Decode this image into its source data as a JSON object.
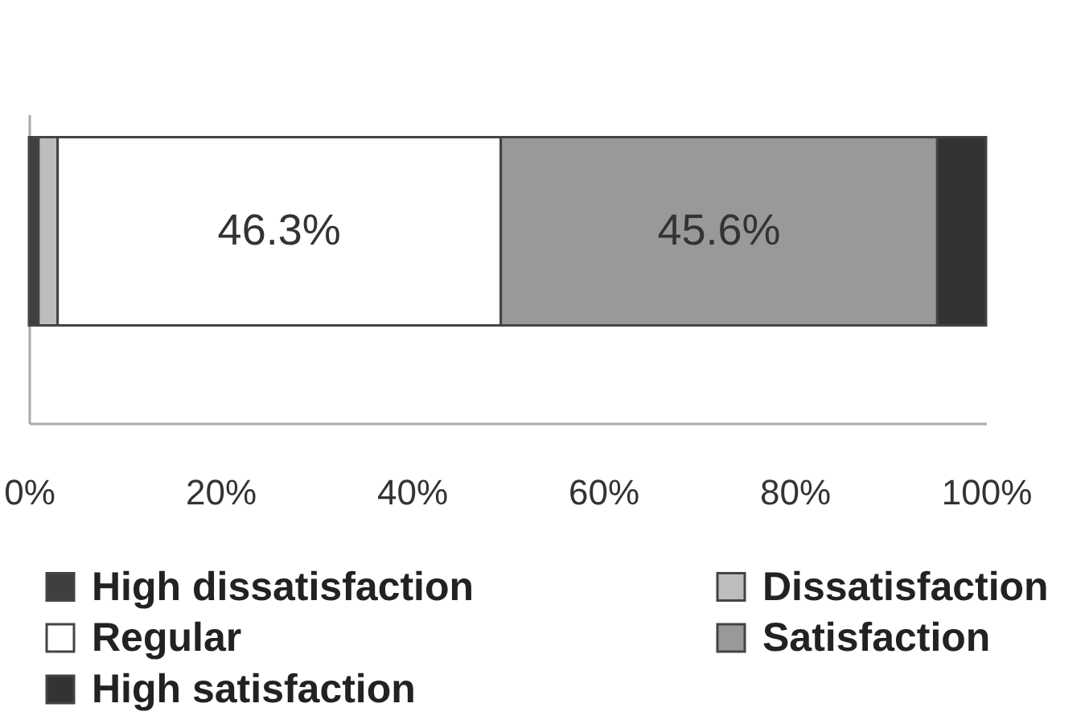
{
  "chart_data": {
    "type": "bar",
    "orientation": "horizontal",
    "stacked": true,
    "categories": [
      null
    ],
    "series": [
      {
        "name": "High dissatisfaction",
        "color": "#3f3f3f",
        "values": [
          1
        ]
      },
      {
        "name": "Dissatisfaction",
        "color": "#bdbdbd",
        "values": [
          2
        ]
      },
      {
        "name": "Regular",
        "color": "#ffffff",
        "values": [
          46.3
        ],
        "value_labels": [
          "46.3%"
        ]
      },
      {
        "name": "Satisfaction",
        "color": "#999999",
        "values": [
          45.6
        ],
        "value_labels": [
          "45.6%"
        ]
      },
      {
        "name": "High satisfaction",
        "color": "#333333",
        "values": [
          5.1
        ]
      }
    ],
    "xlim": [
      0,
      100
    ],
    "xticks": [
      {
        "value": 0,
        "label": "0%"
      },
      {
        "value": 20,
        "label": "20%"
      },
      {
        "value": 40,
        "label": "40%"
      },
      {
        "value": 60,
        "label": "60%"
      },
      {
        "value": 80,
        "label": "80%"
      },
      {
        "value": 100,
        "label": "100%"
      }
    ],
    "grid": false,
    "legend": "bottom",
    "tick_labels": "x"
  }
}
